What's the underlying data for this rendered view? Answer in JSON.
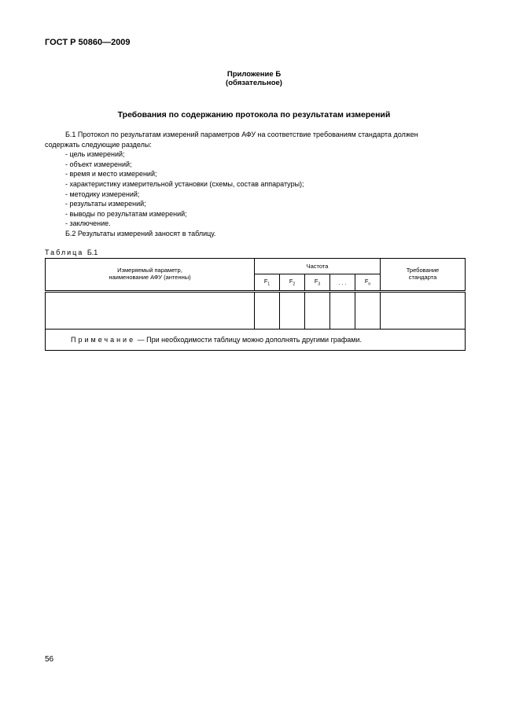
{
  "header": "ГОСТ Р 50860—2009",
  "appendix": {
    "title": "Приложение Б",
    "subtitle": "(обязательное)"
  },
  "section_title": "Требования по содержанию протокола по результатам измерений",
  "para1_line1": "Б.1 Протокол по результатам измерений параметров АФУ на соответствие требованиям стандарта должен",
  "para1_line2": "содержать следующие разделы:",
  "list": [
    "- цель измерений;",
    "- объект измерений;",
    "- время и место измерений;",
    "- характеристику измерительной установки (схемы, состав аппаратуры);",
    "- методику измерений;",
    "- результаты измерений;",
    "- выводы по результатам измерений;",
    "- заключение."
  ],
  "para2": "Б.2 Результаты измерений заносят в таблицу.",
  "table": {
    "caption_word": "Таблица",
    "caption_num": "Б.1",
    "col1_line1": "Измеряемый параметр,",
    "col1_line2": "наименование АФУ (антенны)",
    "freq_header": "Частота",
    "freq_cols": [
      {
        "base": "F",
        "sub": "1"
      },
      {
        "base": "F",
        "sub": "2"
      },
      {
        "base": "F",
        "sub": "3"
      },
      {
        "base": ". . .",
        "sub": ""
      },
      {
        "base": "F",
        "sub": "n"
      }
    ],
    "req_line1": "Требование",
    "req_line2": "стандарта",
    "note_label": "Примечание",
    "note_text": " — При необходимости таблицу можно дополнять другими графами."
  },
  "page_number": "56"
}
